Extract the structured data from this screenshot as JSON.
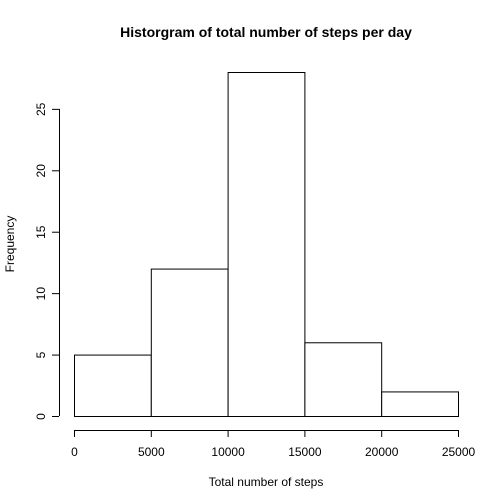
{
  "chart_data": {
    "type": "bar",
    "title": "Historgram of total number of steps per day",
    "xlabel": "Total number of steps",
    "ylabel": "Frequency",
    "bins": [
      {
        "from": 0,
        "to": 5000,
        "count": 5
      },
      {
        "from": 5000,
        "to": 10000,
        "count": 12
      },
      {
        "from": 10000,
        "to": 15000,
        "count": 28
      },
      {
        "from": 15000,
        "to": 20000,
        "count": 6
      },
      {
        "from": 20000,
        "to": 25000,
        "count": 2
      }
    ],
    "xlim": [
      0,
      25000
    ],
    "ylim": [
      0,
      28
    ],
    "x_ticks": [
      0,
      5000,
      10000,
      15000,
      20000,
      25000
    ],
    "y_ticks": [
      0,
      5,
      10,
      15,
      20,
      25
    ],
    "grid": false,
    "legend": "none"
  }
}
